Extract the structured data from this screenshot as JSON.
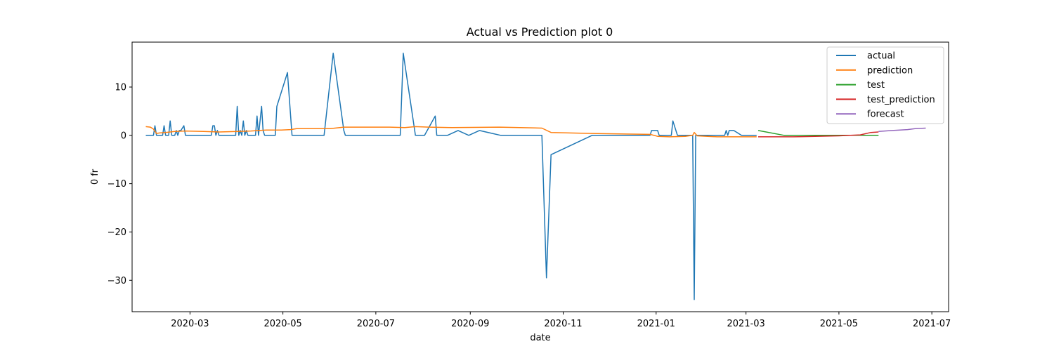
{
  "chart_data": {
    "type": "line",
    "title": "Actual vs Prediction plot 0",
    "xlabel": "date",
    "ylabel": "0 fr",
    "xlim": [
      "2020-01-23",
      "2021-07-12"
    ],
    "ylim": [
      -36.5,
      19.3
    ],
    "x_ticks": [
      "2020-03-01",
      "2020-05-01",
      "2020-07-01",
      "2020-09-01",
      "2020-11-01",
      "2021-01-01",
      "2021-03-01",
      "2021-05-01",
      "2021-07-01"
    ],
    "x_tick_labels": [
      "2020-03",
      "2020-05",
      "2020-07",
      "2020-09",
      "2020-11",
      "2021-01",
      "2021-03",
      "2021-05",
      "2021-07"
    ],
    "y_ticks": [
      10,
      0,
      -10,
      -20,
      -30
    ],
    "y_tick_labels": [
      "10",
      "0",
      "−10",
      "−20",
      "−30"
    ],
    "grid": false,
    "legend_position": "top-right",
    "series": [
      {
        "name": "actual",
        "color": "#1f77b4",
        "points": [
          [
            "2020-02-01",
            0
          ],
          [
            "2020-02-06",
            0
          ],
          [
            "2020-02-07",
            2
          ],
          [
            "2020-02-08",
            0
          ],
          [
            "2020-02-12",
            0
          ],
          [
            "2020-02-13",
            2
          ],
          [
            "2020-02-14",
            0
          ],
          [
            "2020-02-16",
            0
          ],
          [
            "2020-02-17",
            3
          ],
          [
            "2020-02-18",
            0
          ],
          [
            "2020-02-20",
            0
          ],
          [
            "2020-02-21",
            1
          ],
          [
            "2020-02-22",
            0
          ],
          [
            "2020-02-23",
            1
          ],
          [
            "2020-02-24",
            1
          ],
          [
            "2020-02-26",
            2
          ],
          [
            "2020-02-27",
            0
          ],
          [
            "2020-03-15",
            0
          ],
          [
            "2020-03-16",
            2
          ],
          [
            "2020-03-17",
            2
          ],
          [
            "2020-03-18",
            0
          ],
          [
            "2020-03-19",
            1
          ],
          [
            "2020-03-20",
            0
          ],
          [
            "2020-03-31",
            0
          ],
          [
            "2020-04-01",
            6
          ],
          [
            "2020-04-02",
            0
          ],
          [
            "2020-04-03",
            1
          ],
          [
            "2020-04-04",
            0
          ],
          [
            "2020-04-05",
            3
          ],
          [
            "2020-04-06",
            0
          ],
          [
            "2020-04-07",
            1
          ],
          [
            "2020-04-08",
            0
          ],
          [
            "2020-04-13",
            0
          ],
          [
            "2020-04-14",
            4
          ],
          [
            "2020-04-15",
            0
          ],
          [
            "2020-04-17",
            6
          ],
          [
            "2020-04-18",
            1
          ],
          [
            "2020-04-19",
            0
          ],
          [
            "2020-04-26",
            0
          ],
          [
            "2020-04-27",
            6
          ],
          [
            "2020-05-04",
            13
          ],
          [
            "2020-05-07",
            0
          ],
          [
            "2020-05-28",
            0
          ],
          [
            "2020-06-03",
            17
          ],
          [
            "2020-06-10",
            1
          ],
          [
            "2020-06-11",
            0
          ],
          [
            "2020-07-17",
            0
          ],
          [
            "2020-07-19",
            17
          ],
          [
            "2020-07-27",
            0
          ],
          [
            "2020-08-02",
            0
          ],
          [
            "2020-08-09",
            4
          ],
          [
            "2020-08-10",
            0
          ],
          [
            "2020-08-17",
            0
          ],
          [
            "2020-08-24",
            1
          ],
          [
            "2020-08-31",
            0
          ],
          [
            "2020-09-07",
            1
          ],
          [
            "2020-09-14",
            0.5
          ],
          [
            "2020-09-21",
            0
          ],
          [
            "2020-10-18",
            0
          ],
          [
            "2020-10-21",
            -29.5
          ],
          [
            "2020-10-24",
            -4
          ],
          [
            "2020-11-20",
            0
          ],
          [
            "2020-12-28",
            0
          ],
          [
            "2020-12-29",
            1
          ],
          [
            "2021-01-02",
            1
          ],
          [
            "2021-01-03",
            0
          ],
          [
            "2021-01-11",
            0
          ],
          [
            "2021-01-12",
            3
          ],
          [
            "2021-01-15",
            0
          ],
          [
            "2021-01-25",
            0
          ],
          [
            "2021-01-26",
            -34
          ],
          [
            "2021-01-27",
            0
          ],
          [
            "2021-02-15",
            0
          ],
          [
            "2021-02-16",
            1
          ],
          [
            "2021-02-17",
            0
          ],
          [
            "2021-02-18",
            1
          ],
          [
            "2021-02-21",
            1
          ],
          [
            "2021-02-26",
            0
          ],
          [
            "2021-03-08",
            0
          ]
        ]
      },
      {
        "name": "prediction",
        "color": "#ff7f0e",
        "points": [
          [
            "2020-02-01",
            1.8
          ],
          [
            "2020-02-04",
            1.7
          ],
          [
            "2020-02-06",
            1.3
          ],
          [
            "2020-02-08",
            0.4
          ],
          [
            "2020-02-10",
            0.5
          ],
          [
            "2020-02-14",
            0.6
          ],
          [
            "2020-02-20",
            0.8
          ],
          [
            "2020-02-27",
            0.9
          ],
          [
            "2020-03-10",
            0.8
          ],
          [
            "2020-03-20",
            0.7
          ],
          [
            "2020-04-01",
            0.8
          ],
          [
            "2020-04-10",
            0.9
          ],
          [
            "2020-04-20",
            1.1
          ],
          [
            "2020-04-30",
            1.1
          ],
          [
            "2020-05-06",
            1.2
          ],
          [
            "2020-05-10",
            1.4
          ],
          [
            "2020-06-01",
            1.4
          ],
          [
            "2020-06-10",
            1.7
          ],
          [
            "2020-07-10",
            1.7
          ],
          [
            "2020-07-20",
            1.6
          ],
          [
            "2020-07-27",
            1.8
          ],
          [
            "2020-08-05",
            1.7
          ],
          [
            "2020-08-20",
            1.6
          ],
          [
            "2020-09-20",
            1.7
          ],
          [
            "2020-10-18",
            1.5
          ],
          [
            "2020-10-24",
            0.6
          ],
          [
            "2020-11-20",
            0.4
          ],
          [
            "2020-12-28",
            0.2
          ],
          [
            "2021-01-02",
            -0.2
          ],
          [
            "2021-01-10",
            -0.3
          ],
          [
            "2021-01-20",
            -0.2
          ],
          [
            "2021-01-25",
            0
          ],
          [
            "2021-01-26",
            0.6
          ],
          [
            "2021-01-28",
            -0.1
          ],
          [
            "2021-02-10",
            -0.3
          ],
          [
            "2021-02-20",
            -0.3
          ],
          [
            "2021-03-08",
            -0.3
          ]
        ]
      },
      {
        "name": "test",
        "color": "#2ca02c",
        "points": [
          [
            "2021-03-09",
            1
          ],
          [
            "2021-03-26",
            0
          ],
          [
            "2021-04-20",
            0
          ],
          [
            "2021-05-27",
            0
          ]
        ]
      },
      {
        "name": "test_prediction",
        "color": "#d62728",
        "points": [
          [
            "2021-03-09",
            -0.3
          ],
          [
            "2021-04-01",
            -0.3
          ],
          [
            "2021-05-01",
            -0.1
          ],
          [
            "2021-05-15",
            0.1
          ],
          [
            "2021-05-22",
            0.6
          ],
          [
            "2021-05-27",
            0.7
          ]
        ]
      },
      {
        "name": "forecast",
        "color": "#9467bd",
        "points": [
          [
            "2021-05-27",
            0.8
          ],
          [
            "2021-06-05",
            1.0
          ],
          [
            "2021-06-15",
            1.2
          ],
          [
            "2021-06-20",
            1.4
          ],
          [
            "2021-06-27",
            1.5
          ]
        ]
      }
    ]
  }
}
